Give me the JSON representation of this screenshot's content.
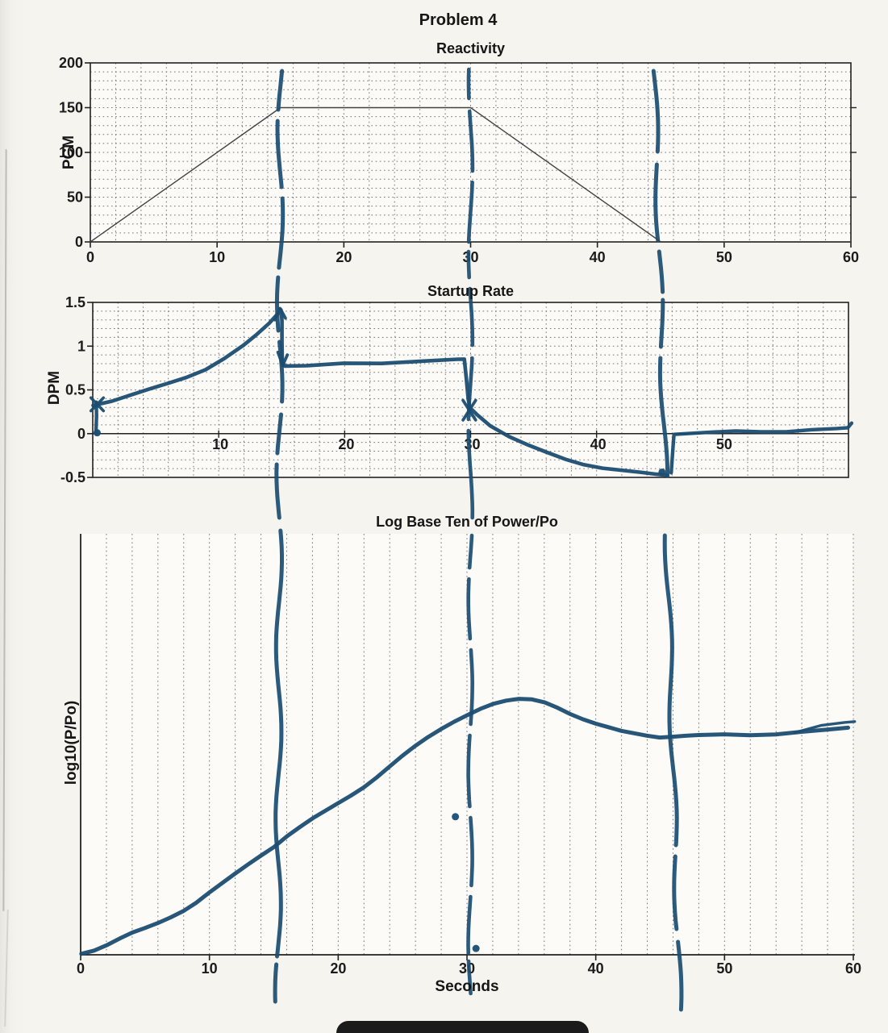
{
  "page": {
    "title": "Problem 4"
  },
  "colors": {
    "pen_blue": "#1b4d72",
    "curve_black": "#3a3a3a",
    "paper": "#f6f4ef",
    "ink": "#161616"
  },
  "annotations": {
    "vertical_marker_lines_seconds": [
      15,
      30,
      45.5
    ]
  },
  "chart_data": [
    {
      "type": "line",
      "title": "Reactivity",
      "ylabel": "PCM",
      "xlabel": "",
      "xlim": [
        0,
        60
      ],
      "ylim": [
        0,
        200
      ],
      "xticks": [
        0,
        10,
        20,
        30,
        40,
        50,
        60
      ],
      "yticks": [
        0,
        50,
        100,
        150,
        200
      ],
      "grid": {
        "style": "dotted",
        "x_minor_step": 2,
        "y_minor_step": 10
      },
      "series": [
        {
          "name": "reactivity-pcm-line",
          "color": "#3a3a3a",
          "width": 1.4,
          "points": [
            [
              0,
              0
            ],
            [
              15,
              150
            ],
            [
              30,
              150
            ],
            [
              45,
              0
            ],
            [
              60,
              0
            ]
          ]
        }
      ]
    },
    {
      "type": "line",
      "title": "Startup Rate",
      "ylabel": "DPM",
      "xlabel": "",
      "xlim": [
        0,
        60
      ],
      "ylim": [
        -0.5,
        1.5
      ],
      "xticks": [
        10,
        20,
        30,
        40,
        50
      ],
      "yticks": [
        -0.5,
        0,
        0.5,
        1,
        1.5
      ],
      "grid": {
        "style": "dotted",
        "x_minor_step": 2,
        "y_minor_step": 0.1
      },
      "series": [
        {
          "name": "startup-rate-hand-curve",
          "color": "#1b4d72",
          "width": 4.6,
          "hand": true,
          "points": [
            [
              0,
              0.33
            ],
            [
              1.5,
              0.38
            ],
            [
              3,
              0.44
            ],
            [
              4.5,
              0.5
            ],
            [
              6,
              0.57
            ],
            [
              7.5,
              0.65
            ],
            [
              9,
              0.74
            ],
            [
              10.5,
              0.86
            ],
            [
              12,
              1.0
            ],
            [
              13,
              1.12
            ],
            [
              14,
              1.26
            ],
            [
              14.7,
              1.38
            ],
            [
              14.9,
              1.42
            ],
            [
              15.0,
              1.3
            ],
            [
              15.05,
              1.05
            ],
            [
              15.1,
              0.82
            ],
            [
              15.3,
              0.78
            ],
            [
              17,
              0.785
            ],
            [
              20,
              0.795
            ],
            [
              23,
              0.81
            ],
            [
              26,
              0.825
            ],
            [
              29,
              0.845
            ],
            [
              29.55,
              0.85
            ],
            [
              29.7,
              0.62
            ],
            [
              29.8,
              0.4
            ],
            [
              29.9,
              0.3
            ],
            [
              30.5,
              0.22
            ],
            [
              31.5,
              0.1
            ],
            [
              33,
              -0.03
            ],
            [
              34.5,
              -0.135
            ],
            [
              36,
              -0.22
            ],
            [
              37.5,
              -0.29
            ],
            [
              39,
              -0.345
            ],
            [
              40.5,
              -0.39
            ],
            [
              42,
              -0.425
            ],
            [
              43.5,
              -0.45
            ],
            [
              44.8,
              -0.465
            ],
            [
              45.6,
              -0.47
            ]
          ]
        },
        {
          "name": "startup-rate-hand-curve-after-jump",
          "color": "#1b4d72",
          "width": 4.4,
          "hand": true,
          "points": [
            [
              45.95,
              -0.44
            ],
            [
              46.05,
              -0.1
            ],
            [
              46.1,
              0.0
            ],
            [
              47,
              0.01
            ],
            [
              49,
              0.015
            ],
            [
              51,
              0.02
            ],
            [
              53,
              0.025
            ],
            [
              55,
              0.03
            ],
            [
              57,
              0.04
            ],
            [
              59,
              0.05
            ],
            [
              59.9,
              0.065
            ],
            [
              60.2,
              0.12
            ]
          ]
        },
        {
          "name": "pen-stroke-start-vertical",
          "color": "#1b4d72",
          "width": 4.4,
          "points": [
            [
              0.25,
              0.0
            ],
            [
              0.3,
              0.2
            ],
            [
              0.28,
              0.36
            ]
          ]
        },
        {
          "name": "pen-cross-start-a",
          "color": "#1b4d72",
          "width": 3.6,
          "points": [
            [
              -0.15,
              0.41
            ],
            [
              0.85,
              0.26
            ]
          ]
        },
        {
          "name": "pen-cross-start-b",
          "color": "#1b4d72",
          "width": 3.6,
          "points": [
            [
              -0.15,
              0.26
            ],
            [
              0.85,
              0.41
            ]
          ]
        },
        {
          "name": "pen-arrow-peak-a",
          "color": "#1b4d72",
          "width": 3.8,
          "points": [
            [
              14.45,
              1.3
            ],
            [
              14.85,
              1.43
            ]
          ]
        },
        {
          "name": "pen-arrow-peak-b",
          "color": "#1b4d72",
          "width": 3.8,
          "points": [
            [
              15.3,
              1.32
            ],
            [
              14.88,
              1.43
            ]
          ]
        },
        {
          "name": "pen-arrow-drop-a",
          "color": "#1b4d72",
          "width": 3.8,
          "points": [
            [
              14.7,
              0.93
            ],
            [
              15.08,
              0.78
            ]
          ]
        },
        {
          "name": "pen-arrow-drop-b",
          "color": "#1b4d72",
          "width": 3.8,
          "points": [
            [
              15.45,
              0.9
            ],
            [
              15.08,
              0.78
            ]
          ]
        },
        {
          "name": "pen-cross-30s-a",
          "color": "#1b4d72",
          "width": 3.8,
          "points": [
            [
              29.4,
              0.38
            ],
            [
              30.4,
              0.155
            ]
          ]
        },
        {
          "name": "pen-cross-30s-b",
          "color": "#1b4d72",
          "width": 3.8,
          "points": [
            [
              29.4,
              0.155
            ],
            [
              30.4,
              0.38
            ]
          ]
        }
      ],
      "dots": [
        [
          0.35,
          0.01
        ],
        [
          45.2,
          -0.44
        ]
      ]
    },
    {
      "type": "line",
      "title": "Log Base Ten of Power/Po",
      "ylabel": "log10(P/Po)",
      "xlabel": "Seconds",
      "xlim": [
        0,
        60
      ],
      "ylim": [
        0,
        1
      ],
      "xticks": [
        0,
        10,
        20,
        30,
        40,
        50,
        60
      ],
      "yticks": [],
      "grid": {
        "style": "dotted",
        "x_minor_step": 2
      },
      "series": [
        {
          "name": "log-power-hand-curve",
          "color": "#1b4d72",
          "width": 5,
          "hand": true,
          "points": [
            [
              0,
              0.004
            ],
            [
              1,
              0.012
            ],
            [
              2,
              0.024
            ],
            [
              3,
              0.038
            ],
            [
              4,
              0.051
            ],
            [
              5,
              0.062
            ],
            [
              6,
              0.075
            ],
            [
              7,
              0.09
            ],
            [
              8,
              0.106
            ],
            [
              9,
              0.125
            ],
            [
              10,
              0.147
            ],
            [
              11,
              0.168
            ],
            [
              12,
              0.19
            ],
            [
              13,
              0.213
            ],
            [
              14,
              0.236
            ],
            [
              15,
              0.258
            ],
            [
              16,
              0.284
            ],
            [
              17,
              0.305
            ],
            [
              18,
              0.324
            ],
            [
              19,
              0.341
            ],
            [
              20,
              0.359
            ],
            [
              21,
              0.378
            ],
            [
              22,
              0.399
            ],
            [
              23,
              0.423
            ],
            [
              24,
              0.448
            ],
            [
              25,
              0.472
            ],
            [
              26,
              0.494
            ],
            [
              27,
              0.515
            ],
            [
              28,
              0.535
            ],
            [
              29,
              0.554
            ],
            [
              30,
              0.571
            ],
            [
              31,
              0.586
            ],
            [
              32,
              0.597
            ],
            [
              33,
              0.603
            ],
            [
              34,
              0.606
            ],
            [
              35,
              0.605
            ],
            [
              36,
              0.599
            ],
            [
              37,
              0.588
            ],
            [
              38,
              0.574
            ],
            [
              39,
              0.561
            ],
            [
              40,
              0.549
            ],
            [
              41,
              0.539
            ],
            [
              42,
              0.53
            ],
            [
              43,
              0.525
            ],
            [
              44,
              0.521
            ],
            [
              45,
              0.518
            ],
            [
              46,
              0.52
            ],
            [
              47,
              0.521
            ],
            [
              48,
              0.521
            ],
            [
              50,
              0.522
            ],
            [
              52,
              0.523
            ],
            [
              54,
              0.525
            ],
            [
              56,
              0.528
            ],
            [
              58,
              0.534
            ],
            [
              59.6,
              0.541
            ]
          ]
        },
        {
          "name": "log-power-end-fork-stroke",
          "color": "#1b4d72",
          "width": 3.4,
          "hand": true,
          "points": [
            [
              55.5,
              0.527
            ],
            [
              57.5,
              0.543
            ],
            [
              59.3,
              0.553
            ],
            [
              60.1,
              0.556
            ]
          ]
        }
      ],
      "dots": [
        [
          29.1,
          0.328
        ],
        [
          30.7,
          0.015
        ]
      ]
    }
  ]
}
